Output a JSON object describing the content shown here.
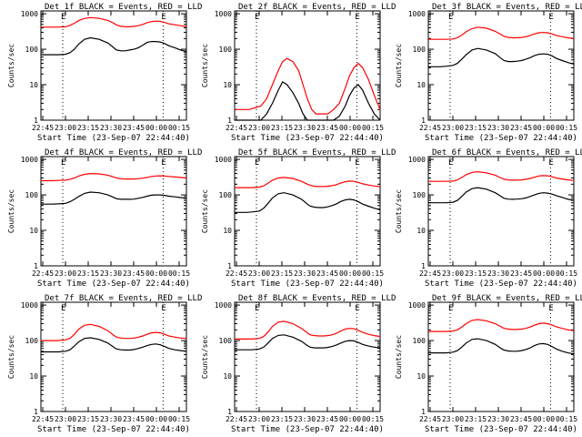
{
  "common": {
    "y_axis_label": "Counts/sec",
    "x_axis_label": "Start Time (23-Sep-07 22:44:40)",
    "x_tick_labels": [
      "22:45",
      "23:00",
      "23:15",
      "23:30",
      "23:45",
      "00:00",
      "00:15"
    ],
    "y_tick_labels": [
      "1",
      "10",
      "100",
      "1000"
    ],
    "marker_label": "E",
    "colors": {
      "events": "#000000",
      "lld": "#ff0000",
      "axes": "#000000",
      "dotted_marker": "#000000"
    }
  },
  "chart_data": [
    {
      "type": "line",
      "title": "Det 1f BLACK = Events, RED = LLD",
      "xlim_min": [
        0,
        100
      ],
      "ylim": [
        1,
        1200
      ],
      "yscale": "log",
      "markers_min": [
        15,
        84
      ],
      "x_min": [
        0,
        8,
        12,
        17,
        20,
        23,
        26,
        30,
        34,
        40,
        46,
        50,
        52,
        55,
        58,
        61,
        64,
        67,
        70,
        73,
        76,
        79,
        82,
        85,
        88,
        92,
        96,
        100
      ],
      "series": [
        {
          "name": "BLACK = Events",
          "values": [
            70,
            70,
            70,
            72,
            80,
            100,
            140,
            190,
            210,
            190,
            150,
            110,
            95,
            90,
            90,
            95,
            100,
            110,
            130,
            155,
            165,
            165,
            160,
            145,
            125,
            110,
            95,
            85
          ]
        },
        {
          "name": "RED = LLD",
          "values": [
            420,
            420,
            420,
            430,
            470,
            540,
            640,
            740,
            780,
            740,
            650,
            540,
            480,
            440,
            430,
            430,
            440,
            460,
            500,
            560,
            600,
            620,
            610,
            570,
            520,
            490,
            460,
            430
          ]
        }
      ]
    },
    {
      "type": "line",
      "title": "Det 2f BLACK = Events, RED = LLD",
      "xlim_min": [
        0,
        100
      ],
      "ylim": [
        1,
        1200
      ],
      "yscale": "log",
      "markers_min": [
        15,
        84
      ],
      "x_min": [
        0,
        10,
        18,
        22,
        26,
        30,
        33,
        36,
        40,
        44,
        47,
        50,
        53,
        56,
        60,
        64,
        68,
        72,
        76,
        79,
        82,
        85,
        88,
        92,
        96,
        100
      ],
      "series": [
        {
          "name": "BLACK = Events",
          "values": [
            1,
            1,
            1,
            1.5,
            3,
            7,
            12,
            10,
            6,
            3,
            1.5,
            1,
            1,
            1,
            1,
            1,
            1,
            1.3,
            2.5,
            5,
            8,
            10,
            7,
            3,
            1.5,
            1
          ]
        },
        {
          "name": "RED = LLD",
          "values": [
            2,
            2,
            2.5,
            4,
            10,
            25,
            45,
            55,
            45,
            25,
            10,
            4,
            2,
            1.5,
            1.5,
            1.5,
            2,
            3,
            8,
            18,
            30,
            40,
            30,
            14,
            5,
            2
          ]
        }
      ]
    },
    {
      "type": "line",
      "title": "Det 3f BLACK = Events, RED = LLD",
      "xlim_min": [
        0,
        100
      ],
      "ylim": [
        1,
        1200
      ],
      "yscale": "log",
      "markers_min": [
        15,
        84
      ],
      "x_min": [
        0,
        8,
        12,
        17,
        20,
        23,
        26,
        30,
        34,
        40,
        46,
        50,
        52,
        55,
        58,
        61,
        64,
        67,
        70,
        73,
        76,
        79,
        82,
        85,
        88,
        92,
        96,
        100
      ],
      "series": [
        {
          "name": "BLACK = Events",
          "values": [
            32,
            32,
            33,
            35,
            40,
            52,
            70,
            95,
            105,
            95,
            75,
            55,
            48,
            45,
            45,
            46,
            48,
            52,
            58,
            66,
            72,
            74,
            72,
            65,
            55,
            48,
            42,
            38
          ]
        },
        {
          "name": "RED = LLD",
          "values": [
            190,
            190,
            190,
            195,
            210,
            250,
            310,
            380,
            420,
            390,
            320,
            260,
            230,
            215,
            210,
            210,
            215,
            225,
            245,
            270,
            290,
            295,
            290,
            270,
            245,
            225,
            210,
            200
          ]
        }
      ]
    },
    {
      "type": "line",
      "title": "Det 4f BLACK = Events, RED = LLD",
      "xlim_min": [
        0,
        100
      ],
      "ylim": [
        1,
        1200
      ],
      "yscale": "log",
      "markers_min": [
        15,
        84
      ],
      "x_min": [
        0,
        8,
        12,
        17,
        20,
        23,
        26,
        30,
        34,
        40,
        46,
        50,
        52,
        55,
        58,
        61,
        64,
        67,
        70,
        73,
        76,
        79,
        82,
        85,
        88,
        92,
        96,
        100
      ],
      "series": [
        {
          "name": "BLACK = Events",
          "values": [
            55,
            55,
            56,
            58,
            64,
            75,
            90,
            110,
            120,
            115,
            100,
            85,
            78,
            75,
            75,
            75,
            76,
            80,
            85,
            92,
            98,
            100,
            100,
            97,
            92,
            88,
            84,
            80
          ]
        },
        {
          "name": "RED = LLD",
          "values": [
            250,
            250,
            255,
            260,
            275,
            300,
            340,
            380,
            400,
            390,
            360,
            320,
            300,
            285,
            280,
            280,
            280,
            285,
            295,
            310,
            330,
            340,
            345,
            340,
            330,
            320,
            310,
            300
          ]
        }
      ]
    },
    {
      "type": "line",
      "title": "Det 5f BLACK = Events, RED = LLD",
      "xlim_min": [
        0,
        100
      ],
      "ylim": [
        1,
        1200
      ],
      "yscale": "log",
      "markers_min": [
        15,
        84
      ],
      "x_min": [
        0,
        8,
        12,
        17,
        20,
        23,
        26,
        30,
        34,
        40,
        46,
        50,
        52,
        55,
        58,
        61,
        64,
        67,
        70,
        73,
        76,
        79,
        82,
        85,
        88,
        92,
        96,
        100
      ],
      "series": [
        {
          "name": "BLACK = Events",
          "values": [
            32,
            32,
            33,
            35,
            42,
            58,
            82,
            108,
            115,
            100,
            75,
            55,
            48,
            45,
            44,
            44,
            46,
            50,
            56,
            65,
            72,
            75,
            72,
            64,
            55,
            48,
            42,
            38
          ]
        },
        {
          "name": "RED = LLD",
          "values": [
            160,
            160,
            160,
            165,
            180,
            215,
            260,
            300,
            310,
            290,
            240,
            200,
            185,
            175,
            172,
            172,
            175,
            182,
            195,
            215,
            235,
            245,
            240,
            225,
            205,
            190,
            178,
            170
          ]
        }
      ]
    },
    {
      "type": "line",
      "title": "Det 6f BLACK = Events, RED = LLD",
      "xlim_min": [
        0,
        100
      ],
      "ylim": [
        1,
        1200
      ],
      "yscale": "log",
      "markers_min": [
        15,
        84
      ],
      "x_min": [
        0,
        8,
        12,
        17,
        20,
        23,
        26,
        30,
        34,
        40,
        46,
        50,
        52,
        55,
        58,
        61,
        64,
        67,
        70,
        73,
        76,
        79,
        82,
        85,
        88,
        92,
        96,
        100
      ],
      "series": [
        {
          "name": "BLACK = Events",
          "values": [
            60,
            60,
            60,
            62,
            70,
            90,
            120,
            150,
            160,
            145,
            115,
            90,
            80,
            76,
            75,
            76,
            78,
            82,
            90,
            100,
            110,
            115,
            112,
            105,
            95,
            85,
            75,
            70
          ]
        },
        {
          "name": "RED = LLD",
          "values": [
            240,
            240,
            240,
            245,
            265,
            310,
            370,
            430,
            450,
            420,
            360,
            300,
            275,
            265,
            260,
            260,
            265,
            275,
            290,
            315,
            340,
            350,
            345,
            325,
            300,
            280,
            265,
            255
          ]
        }
      ]
    },
    {
      "type": "line",
      "title": "Det 7f BLACK = Events, RED = LLD",
      "xlim_min": [
        0,
        100
      ],
      "ylim": [
        1,
        1200
      ],
      "yscale": "log",
      "markers_min": [
        15,
        84
      ],
      "x_min": [
        0,
        8,
        12,
        17,
        20,
        23,
        26,
        30,
        34,
        40,
        46,
        50,
        52,
        55,
        58,
        61,
        64,
        67,
        70,
        73,
        76,
        79,
        82,
        85,
        88,
        92,
        96,
        100
      ],
      "series": [
        {
          "name": "BLACK = Events",
          "values": [
            48,
            48,
            48,
            50,
            55,
            70,
            92,
            115,
            120,
            108,
            85,
            65,
            58,
            55,
            54,
            54,
            56,
            60,
            65,
            72,
            78,
            80,
            76,
            68,
            60,
            55,
            52,
            50
          ]
        },
        {
          "name": "RED = LLD",
          "values": [
            100,
            100,
            100,
            105,
            115,
            150,
            210,
            270,
            285,
            250,
            190,
            140,
            125,
            118,
            115,
            115,
            118,
            125,
            135,
            150,
            165,
            170,
            165,
            150,
            135,
            125,
            118,
            115
          ]
        }
      ]
    },
    {
      "type": "line",
      "title": "Det 8f BLACK = Events, RED = LLD",
      "xlim_min": [
        0,
        100
      ],
      "ylim": [
        1,
        1200
      ],
      "yscale": "log",
      "markers_min": [
        15,
        84
      ],
      "x_min": [
        0,
        8,
        12,
        17,
        20,
        23,
        26,
        30,
        34,
        40,
        46,
        50,
        52,
        55,
        58,
        61,
        64,
        67,
        70,
        73,
        76,
        79,
        82,
        85,
        88,
        92,
        96,
        100
      ],
      "series": [
        {
          "name": "BLACK = Events",
          "values": [
            55,
            55,
            55,
            58,
            65,
            85,
            115,
            140,
            145,
            125,
            95,
            72,
            65,
            62,
            62,
            62,
            64,
            68,
            75,
            85,
            95,
            100,
            98,
            88,
            78,
            70,
            65,
            62
          ]
        },
        {
          "name": "RED = LLD",
          "values": [
            110,
            110,
            110,
            115,
            130,
            175,
            250,
            330,
            350,
            300,
            220,
            165,
            145,
            138,
            135,
            135,
            138,
            145,
            160,
            185,
            210,
            220,
            215,
            195,
            170,
            150,
            138,
            130
          ]
        }
      ]
    },
    {
      "type": "line",
      "title": "Det 9f BLACK = Events, RED = LLD",
      "xlim_min": [
        0,
        100
      ],
      "ylim": [
        1,
        1200
      ],
      "yscale": "log",
      "markers_min": [
        15,
        84
      ],
      "x_min": [
        0,
        8,
        12,
        17,
        20,
        23,
        26,
        30,
        34,
        40,
        46,
        50,
        52,
        55,
        58,
        61,
        64,
        67,
        70,
        73,
        76,
        79,
        82,
        85,
        88,
        92,
        96,
        100
      ],
      "series": [
        {
          "name": "BLACK = Events",
          "values": [
            45,
            45,
            45,
            47,
            52,
            65,
            85,
            108,
            112,
            100,
            78,
            60,
            54,
            51,
            50,
            50,
            52,
            56,
            62,
            72,
            80,
            82,
            78,
            68,
            58,
            50,
            45,
            42
          ]
        },
        {
          "name": "RED = LLD",
          "values": [
            180,
            180,
            180,
            185,
            200,
            240,
            300,
            370,
            390,
            360,
            300,
            245,
            220,
            210,
            205,
            205,
            210,
            220,
            240,
            270,
            300,
            310,
            300,
            275,
            245,
            220,
            200,
            190
          ]
        }
      ]
    }
  ]
}
